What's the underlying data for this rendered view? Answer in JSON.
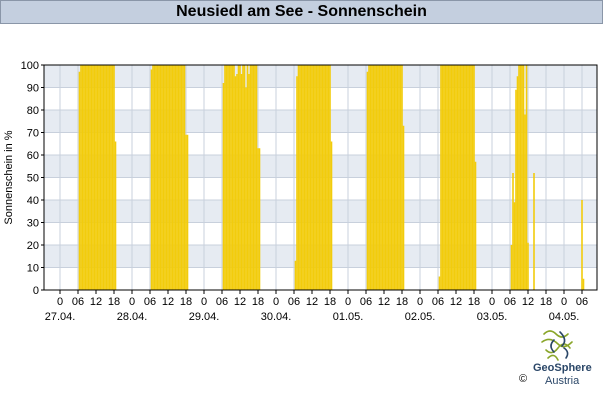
{
  "header": {
    "title": "Neusiedl am See - Sonnenschein"
  },
  "chart_data": {
    "type": "bar",
    "ylabel": "Sonnenschein in %",
    "xlabel": "",
    "ylim": [
      0,
      100
    ],
    "yticks": [
      0,
      10,
      20,
      30,
      40,
      50,
      60,
      70,
      80,
      90,
      100
    ],
    "hour_ticks": [
      "0",
      "06",
      "12",
      "18"
    ],
    "date_labels": [
      "27.04.",
      "28.04.",
      "29.04.",
      "30.04.",
      "01.05.",
      "02.05.",
      "03.05.",
      "04.05."
    ],
    "last_day_hour_ticks": [
      "0",
      "06"
    ],
    "grid": true,
    "bar_color": "#f2cc0c",
    "interval_minutes": 30,
    "series": [
      {
        "days": [
          {
            "date": "27.04.",
            "values": [
              [
                6.5,
                97
              ],
              [
                7,
                100
              ],
              [
                7.5,
                100
              ],
              [
                8,
                100
              ],
              [
                8.5,
                100
              ],
              [
                9,
                100
              ],
              [
                9.5,
                100
              ],
              [
                10,
                100
              ],
              [
                10.5,
                100
              ],
              [
                11,
                100
              ],
              [
                11.5,
                100
              ],
              [
                12,
                100
              ],
              [
                12.5,
                100
              ],
              [
                13,
                100
              ],
              [
                13.5,
                100
              ],
              [
                14,
                100
              ],
              [
                14.5,
                100
              ],
              [
                15,
                100
              ],
              [
                15.5,
                100
              ],
              [
                16,
                100
              ],
              [
                16.5,
                100
              ],
              [
                17,
                100
              ],
              [
                17.5,
                100
              ],
              [
                18,
                100
              ],
              [
                18.5,
                66
              ]
            ]
          },
          {
            "date": "28.04.",
            "values": [
              [
                6.5,
                98
              ],
              [
                7,
                100
              ],
              [
                7.5,
                100
              ],
              [
                8,
                100
              ],
              [
                8.5,
                100
              ],
              [
                9,
                100
              ],
              [
                9.5,
                100
              ],
              [
                10,
                100
              ],
              [
                10.5,
                100
              ],
              [
                11,
                100
              ],
              [
                11.5,
                100
              ],
              [
                12,
                100
              ],
              [
                12.5,
                100
              ],
              [
                13,
                100
              ],
              [
                13.5,
                100
              ],
              [
                14,
                100
              ],
              [
                14.5,
                100
              ],
              [
                15,
                100
              ],
              [
                15.5,
                100
              ],
              [
                16,
                100
              ],
              [
                16.5,
                100
              ],
              [
                17,
                100
              ],
              [
                17.5,
                100
              ],
              [
                18,
                69
              ],
              [
                18.5,
                69
              ]
            ]
          },
          {
            "date": "29.04.",
            "values": [
              [
                6.5,
                92
              ],
              [
                7,
                100
              ],
              [
                7.5,
                100
              ],
              [
                8,
                100
              ],
              [
                8.5,
                100
              ],
              [
                9,
                100
              ],
              [
                9.5,
                100
              ],
              [
                10,
                100
              ],
              [
                10.5,
                95
              ],
              [
                11,
                96
              ],
              [
                11.5,
                100
              ],
              [
                12,
                100
              ],
              [
                12.5,
                96
              ],
              [
                13,
                100
              ],
              [
                13.5,
                100
              ],
              [
                14,
                90
              ],
              [
                14.5,
                100
              ],
              [
                15,
                96
              ],
              [
                15.5,
                100
              ],
              [
                16,
                100
              ],
              [
                16.5,
                100
              ],
              [
                17,
                100
              ],
              [
                17.5,
                100
              ],
              [
                18,
                63
              ],
              [
                18.5,
                63
              ]
            ]
          },
          {
            "date": "30.04.",
            "values": [
              [
                6.5,
                13
              ],
              [
                7,
                95
              ],
              [
                7.5,
                100
              ],
              [
                8,
                100
              ],
              [
                8.5,
                100
              ],
              [
                9,
                100
              ],
              [
                9.5,
                100
              ],
              [
                10,
                100
              ],
              [
                10.5,
                100
              ],
              [
                11,
                100
              ],
              [
                11.5,
                100
              ],
              [
                12,
                100
              ],
              [
                12.5,
                100
              ],
              [
                13,
                100
              ],
              [
                13.5,
                100
              ],
              [
                14,
                100
              ],
              [
                14.5,
                100
              ],
              [
                15,
                100
              ],
              [
                15.5,
                100
              ],
              [
                16,
                100
              ],
              [
                16.5,
                100
              ],
              [
                17,
                100
              ],
              [
                17.5,
                100
              ],
              [
                18,
                100
              ],
              [
                18.5,
                66
              ]
            ]
          },
          {
            "date": "01.05.",
            "values": [
              [
                6.5,
                97
              ],
              [
                7,
                100
              ],
              [
                7.5,
                100
              ],
              [
                8,
                100
              ],
              [
                8.5,
                100
              ],
              [
                9,
                100
              ],
              [
                9.5,
                100
              ],
              [
                10,
                100
              ],
              [
                10.5,
                100
              ],
              [
                11,
                100
              ],
              [
                11.5,
                100
              ],
              [
                12,
                100
              ],
              [
                12.5,
                100
              ],
              [
                13,
                100
              ],
              [
                13.5,
                100
              ],
              [
                14,
                100
              ],
              [
                14.5,
                100
              ],
              [
                15,
                100
              ],
              [
                15.5,
                100
              ],
              [
                16,
                100
              ],
              [
                16.5,
                100
              ],
              [
                17,
                100
              ],
              [
                17.5,
                100
              ],
              [
                18,
                100
              ],
              [
                18.5,
                73
              ]
            ]
          },
          {
            "date": "02.05.",
            "values": [
              [
                6.5,
                6
              ],
              [
                7,
                100
              ],
              [
                7.5,
                100
              ],
              [
                8,
                100
              ],
              [
                8.5,
                100
              ],
              [
                9,
                100
              ],
              [
                9.5,
                100
              ],
              [
                10,
                100
              ],
              [
                10.5,
                100
              ],
              [
                11,
                100
              ],
              [
                11.5,
                100
              ],
              [
                12,
                100
              ],
              [
                12.5,
                100
              ],
              [
                13,
                100
              ],
              [
                13.5,
                100
              ],
              [
                14,
                100
              ],
              [
                14.5,
                100
              ],
              [
                15,
                100
              ],
              [
                15.5,
                100
              ],
              [
                16,
                100
              ],
              [
                16.5,
                100
              ],
              [
                17,
                100
              ],
              [
                17.5,
                100
              ],
              [
                18,
                100
              ],
              [
                18.5,
                57
              ]
            ]
          },
          {
            "date": "03.05.",
            "values": [
              [
                6.5,
                20
              ],
              [
                7,
                52
              ],
              [
                7.5,
                39
              ],
              [
                8,
                89
              ],
              [
                8.5,
                95
              ],
              [
                9,
                100
              ],
              [
                9.5,
                100
              ],
              [
                10,
                100
              ],
              [
                10.5,
                100
              ],
              [
                11,
                78
              ],
              [
                11.5,
                100
              ],
              [
                12,
                21
              ],
              [
                12.5,
                0
              ],
              [
                13,
                0
              ],
              [
                13.5,
                0
              ],
              [
                14,
                52
              ]
            ]
          },
          {
            "date": "04.05.",
            "values": [
              [
                6,
                40
              ],
              [
                6.5,
                5
              ]
            ]
          }
        ]
      }
    ]
  },
  "logo": {
    "name": "GeoSphere",
    "sub": "Austria",
    "copyright": "©"
  }
}
